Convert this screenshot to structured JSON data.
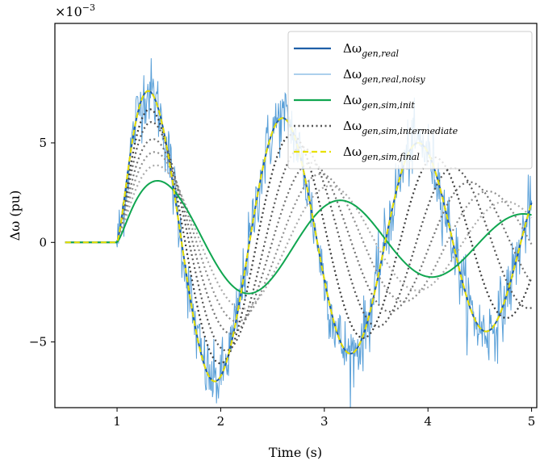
{
  "chart_data": {
    "type": "line",
    "title": "",
    "xlabel": "Time (s)",
    "ylabel": "Δω (pu)",
    "y_multiplier_label": "×10⁻³",
    "xlim": [
      0.4,
      5.05
    ],
    "ylim": [
      -8.3,
      11.0
    ],
    "xticks": [
      1,
      2,
      3,
      4,
      5
    ],
    "xtick_labels": [
      "1",
      "2",
      "3",
      "4",
      "5"
    ],
    "yticks": [
      -5,
      0,
      5
    ],
    "ytick_labels": [
      "−5",
      "0",
      "5"
    ],
    "grid": false,
    "legend_position": "top-right",
    "time_range": [
      0.5,
      5.0
    ],
    "disturbance_time": 1.0,
    "series": [
      {
        "name": "Δω_{gen,real}",
        "legend_text": "Δωgen,real",
        "style": "solid",
        "color": "#1f5fa8",
        "model": {
          "A": 8.2,
          "omega": 4.8,
          "decay": 0.17,
          "rise": 0.08
        }
      },
      {
        "name": "Δω_{gen,real,noisy}",
        "legend_text": "Δωgen,real,noisy",
        "style": "noisy",
        "color": "#5aa0d8",
        "noise_std": 0.85,
        "model": {
          "A": 8.2,
          "omega": 4.8,
          "decay": 0.17,
          "rise": 0.08
        }
      },
      {
        "name": "Δω_{gen,sim,init}",
        "legend_text": "Δωgen,sim,init",
        "style": "solid",
        "color": "#10a650",
        "model": {
          "A": 3.4,
          "omega": 3.55,
          "decay": 0.22,
          "rise": 0.08
        }
      },
      {
        "name": "Δω_{gen,sim,intermediate}",
        "legend_text": "Δωgen,sim,intermediate",
        "style": "dotted",
        "color": "#555555",
        "models": [
          {
            "A": 7.2,
            "omega": 4.55,
            "decay": 0.17,
            "rise": 0.08,
            "color": "#3a3a3a"
          },
          {
            "A": 6.5,
            "omega": 4.3,
            "decay": 0.17,
            "rise": 0.08,
            "color": "#555555"
          },
          {
            "A": 5.6,
            "omega": 4.1,
            "decay": 0.18,
            "rise": 0.08,
            "color": "#707070"
          },
          {
            "A": 4.9,
            "omega": 3.9,
            "decay": 0.18,
            "rise": 0.08,
            "color": "#8e8e8e"
          },
          {
            "A": 4.2,
            "omega": 3.72,
            "decay": 0.19,
            "rise": 0.08,
            "color": "#aaaaaa"
          }
        ]
      },
      {
        "name": "Δω_{gen,sim,final}",
        "legend_text": "Δωgen,sim,final",
        "style": "dashed",
        "color": "#e8e000",
        "model": {
          "A": 8.2,
          "omega": 4.8,
          "decay": 0.17,
          "rise": 0.08
        }
      }
    ]
  },
  "legend": {
    "items": [
      {
        "base": "Δω",
        "sub": "gen,real"
      },
      {
        "base": "Δω",
        "sub": "gen,real,noisy"
      },
      {
        "base": "Δω",
        "sub": "gen,sim,init"
      },
      {
        "base": "Δω",
        "sub": "gen,sim,intermediate"
      },
      {
        "base": "Δω",
        "sub": "gen,sim,final"
      }
    ]
  }
}
